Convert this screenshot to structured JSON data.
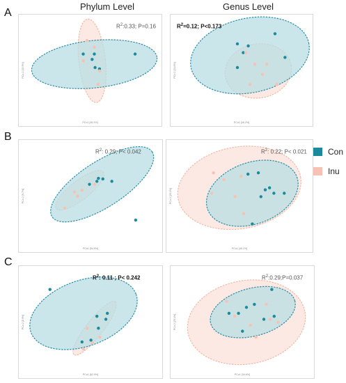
{
  "columns": [
    "Phylum Level",
    "Genus Level"
  ],
  "rows": [
    "A",
    "B",
    "C"
  ],
  "legend": [
    {
      "label": "Con",
      "color": "#1b8a9b"
    },
    {
      "label": "Inu",
      "color": "#f5c2b4"
    }
  ],
  "colors": {
    "con_point": "#1b8a9b",
    "con_fill": "#b9dde4",
    "con_edge": "#2a8fa8",
    "inu_point": "#f5c2b4",
    "inu_fill": "#fbe1d9",
    "inu_edge": "#f2b9a8"
  },
  "panels": [
    {
      "id": "A-phylum",
      "stat": {
        "r2_label": "R",
        "r2_sup": "2",
        "text": ":0.33; P=0.16",
        "bold": false
      },
      "xlabel": "PCo1 [46.3%]",
      "ylabel": "PCo 2 [15.9%]",
      "chart_data": {
        "type": "scatter",
        "series": [
          {
            "group": "Con",
            "x": [
              -0.1,
              0.02,
              0.06,
              0.12,
              0.05,
              0.6
            ],
            "y": [
              0.2,
              0.12,
              0.0,
              -0.02,
              0.2,
              0.2
            ]
          },
          {
            "group": "Inu",
            "x": [
              -0.05,
              0.05,
              -0.1,
              0.1,
              0.12
            ],
            "y": [
              0.4,
              0.3,
              0.1,
              -0.25,
              -0.05
            ]
          }
        ]
      }
    },
    {
      "id": "A-genus",
      "stat": {
        "r2_label": "R",
        "r2_sup": "2",
        "text": "=0.12;  P<0.173",
        "bold": true
      },
      "xlabel": "PCo1 [46.2%]",
      "ylabel": "PCo 2 [23.8%]",
      "chart_data": {
        "type": "scatter",
        "series": [
          {
            "group": "Con",
            "x": [
              0.05,
              0.18,
              0.5,
              0.62,
              0.12,
              0.05
            ],
            "y": [
              0.35,
              0.32,
              0.5,
              0.15,
              0.22,
              0.0
            ]
          },
          {
            "group": "Inu",
            "x": [
              0.15,
              0.26,
              0.4,
              0.35,
              0.2,
              0.52
            ],
            "y": [
              0.22,
              0.05,
              0.05,
              -0.1,
              -0.25,
              -0.25
            ]
          }
        ]
      }
    },
    {
      "id": "B-phylum",
      "stat": {
        "r2_label": "R",
        "r2_sup": "2",
        "text": ": 0.29; P< 0.042",
        "bold": false
      },
      "xlabel": "PCo1 [54.5%]",
      "ylabel": "PCo 2 [9.7%]",
      "chart_data": {
        "type": "scatter",
        "series": [
          {
            "group": "Con",
            "x": [
              -0.02,
              0.1,
              0.16,
              0.28,
              0.08,
              0.6
            ],
            "y": [
              0.05,
              0.15,
              0.14,
              0.1,
              0.1,
              -0.55
            ]
          },
          {
            "group": "Inu",
            "x": [
              -0.35,
              -0.18,
              -0.12,
              0.05,
              -0.22
            ],
            "y": [
              -0.35,
              -0.15,
              -0.05,
              0.05,
              -0.08
            ]
          }
        ]
      }
    },
    {
      "id": "B-genus",
      "stat": {
        "r2_label": "R",
        "r2_sup": "2",
        "text": ": 0.22; P< 0.021",
        "bold": false
      },
      "xlabel": "PCo1 [46.1%]",
      "ylabel": "PCo 2 [25.1%]",
      "chart_data": {
        "type": "scatter",
        "series": [
          {
            "group": "Con",
            "x": [
              0.1,
              0.22,
              0.3,
              0.4,
              0.35,
              0.52,
              0.15,
              0.25
            ],
            "y": [
              0.28,
              0.3,
              0.05,
              0.0,
              0.08,
              0.0,
              -0.45,
              -0.05
            ]
          },
          {
            "group": "Inu",
            "x": [
              -0.3,
              -0.18,
              -0.05,
              0.05,
              -0.32,
              0.02
            ],
            "y": [
              0.3,
              0.2,
              -0.05,
              -0.3,
              0.0,
              0.25
            ]
          }
        ]
      }
    },
    {
      "id": "C-phylum",
      "stat": {
        "r2_label": "R",
        "r2_sup": "2",
        "text": ": 0.11 ; P< 0.242",
        "bold": true
      },
      "xlabel": "PCo1 [62.9%]",
      "ylabel": "PCo 2 [8.9%]",
      "chart_data": {
        "type": "scatter",
        "series": [
          {
            "group": "Con",
            "x": [
              -0.55,
              0.22,
              0.2,
              0.1,
              0.0,
              -0.12,
              0.08
            ],
            "y": [
              0.5,
              0.1,
              0.0,
              -0.15,
              -0.35,
              -0.38,
              0.05
            ]
          },
          {
            "group": "Inu",
            "x": [
              -0.1,
              0.02,
              0.12,
              -0.05
            ],
            "y": [
              -0.5,
              -0.4,
              -0.3,
              -0.15
            ]
          }
        ]
      }
    },
    {
      "id": "C-genus",
      "stat": {
        "r2_label": "R",
        "r2_sup": "2",
        "text": ":0.29;P=0.037",
        "bold": false
      },
      "xlabel": "PCo1 [34.6%]",
      "ylabel": "PCo 2 [25.1%]",
      "chart_data": {
        "type": "scatter",
        "series": [
          {
            "group": "Con",
            "x": [
              -0.22,
              -0.1,
              0.0,
              0.1,
              0.22,
              0.35,
              0.32,
              -0.05
            ],
            "y": [
              0.1,
              0.1,
              0.2,
              0.25,
              0.0,
              0.05,
              0.5,
              -0.2
            ]
          },
          {
            "group": "Inu",
            "x": [
              -0.25,
              -0.15,
              0.05,
              0.25,
              0.4,
              0.3,
              0.12
            ],
            "y": [
              0.3,
              0.05,
              -0.1,
              0.25,
              -0.05,
              0.0,
              -0.3
            ]
          }
        ]
      }
    }
  ]
}
